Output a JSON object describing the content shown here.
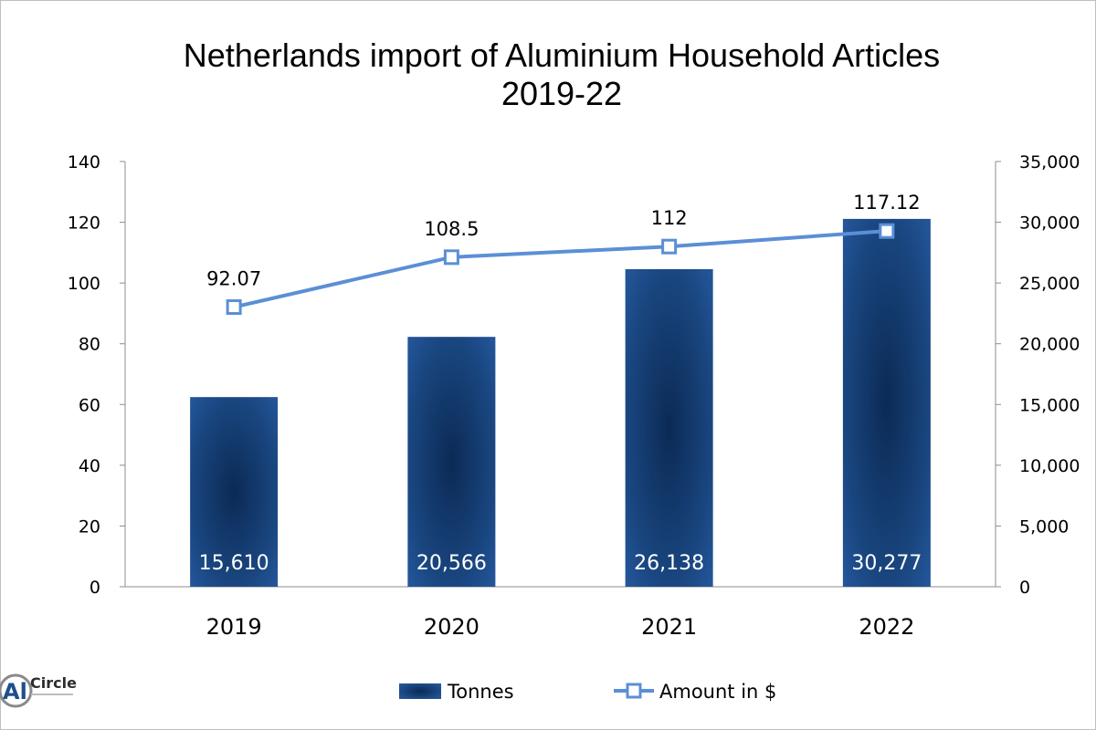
{
  "chart_data": {
    "type": "bar",
    "title": "Netherlands import of Aluminium Household Articles",
    "subtitle": "2019-22",
    "categories": [
      "2019",
      "2020",
      "2021",
      "2022"
    ],
    "series": [
      {
        "name": "Tonnes",
        "type": "bar",
        "axis": "right",
        "values": [
          15610,
          20566,
          26138,
          30277
        ],
        "labels": [
          "15,610",
          "20,566",
          "26,138",
          "30,277"
        ],
        "color": "#1f4e8c"
      },
      {
        "name": "Amount in $",
        "type": "line",
        "axis": "left",
        "values": [
          92.07,
          108.5,
          112,
          117.12
        ],
        "labels": [
          "92.07",
          "108.5",
          "112",
          "117.12"
        ],
        "color": "#5b8fd6"
      }
    ],
    "y_left": {
      "ylim": [
        0,
        140
      ],
      "ticks": [
        "0",
        "20",
        "40",
        "60",
        "80",
        "100",
        "120",
        "140"
      ]
    },
    "y_right": {
      "ylim": [
        0,
        35000
      ],
      "ticks": [
        "0",
        "5,000",
        "10,000",
        "15,000",
        "20,000",
        "25,000",
        "30,000",
        "35,000"
      ]
    },
    "grid": false,
    "legend_position": "bottom"
  },
  "logo": {
    "text": "Circle",
    "mark": "Al"
  }
}
